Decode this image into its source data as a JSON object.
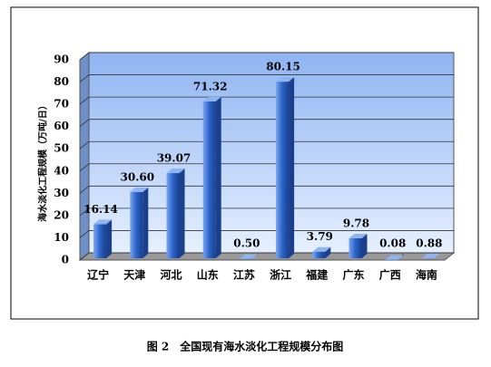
{
  "chart_data": {
    "type": "bar3d",
    "caption": "图 2　全国现有海水淡化工程规模分布图",
    "y_label": "海水淡化工程规模（万吨/日）",
    "categories": [
      "辽宁",
      "天津",
      "河北",
      "山东",
      "江苏",
      "浙江",
      "福建",
      "广东",
      "广西",
      "海南"
    ],
    "values": [
      16.14,
      30.6,
      39.07,
      71.32,
      0.5,
      80.15,
      3.79,
      9.78,
      0.08,
      0.88
    ],
    "value_labels": [
      "16.14",
      "30.60",
      "39.07",
      "71.32",
      "0.50",
      "80.15",
      "3.79",
      "9.78",
      "0.08",
      "0.88"
    ],
    "color": "#2a62c9",
    "ylim": [
      0,
      90
    ],
    "yticks": [
      0,
      10,
      20,
      30,
      40,
      50,
      60,
      70,
      80,
      90
    ],
    "grid": true
  }
}
